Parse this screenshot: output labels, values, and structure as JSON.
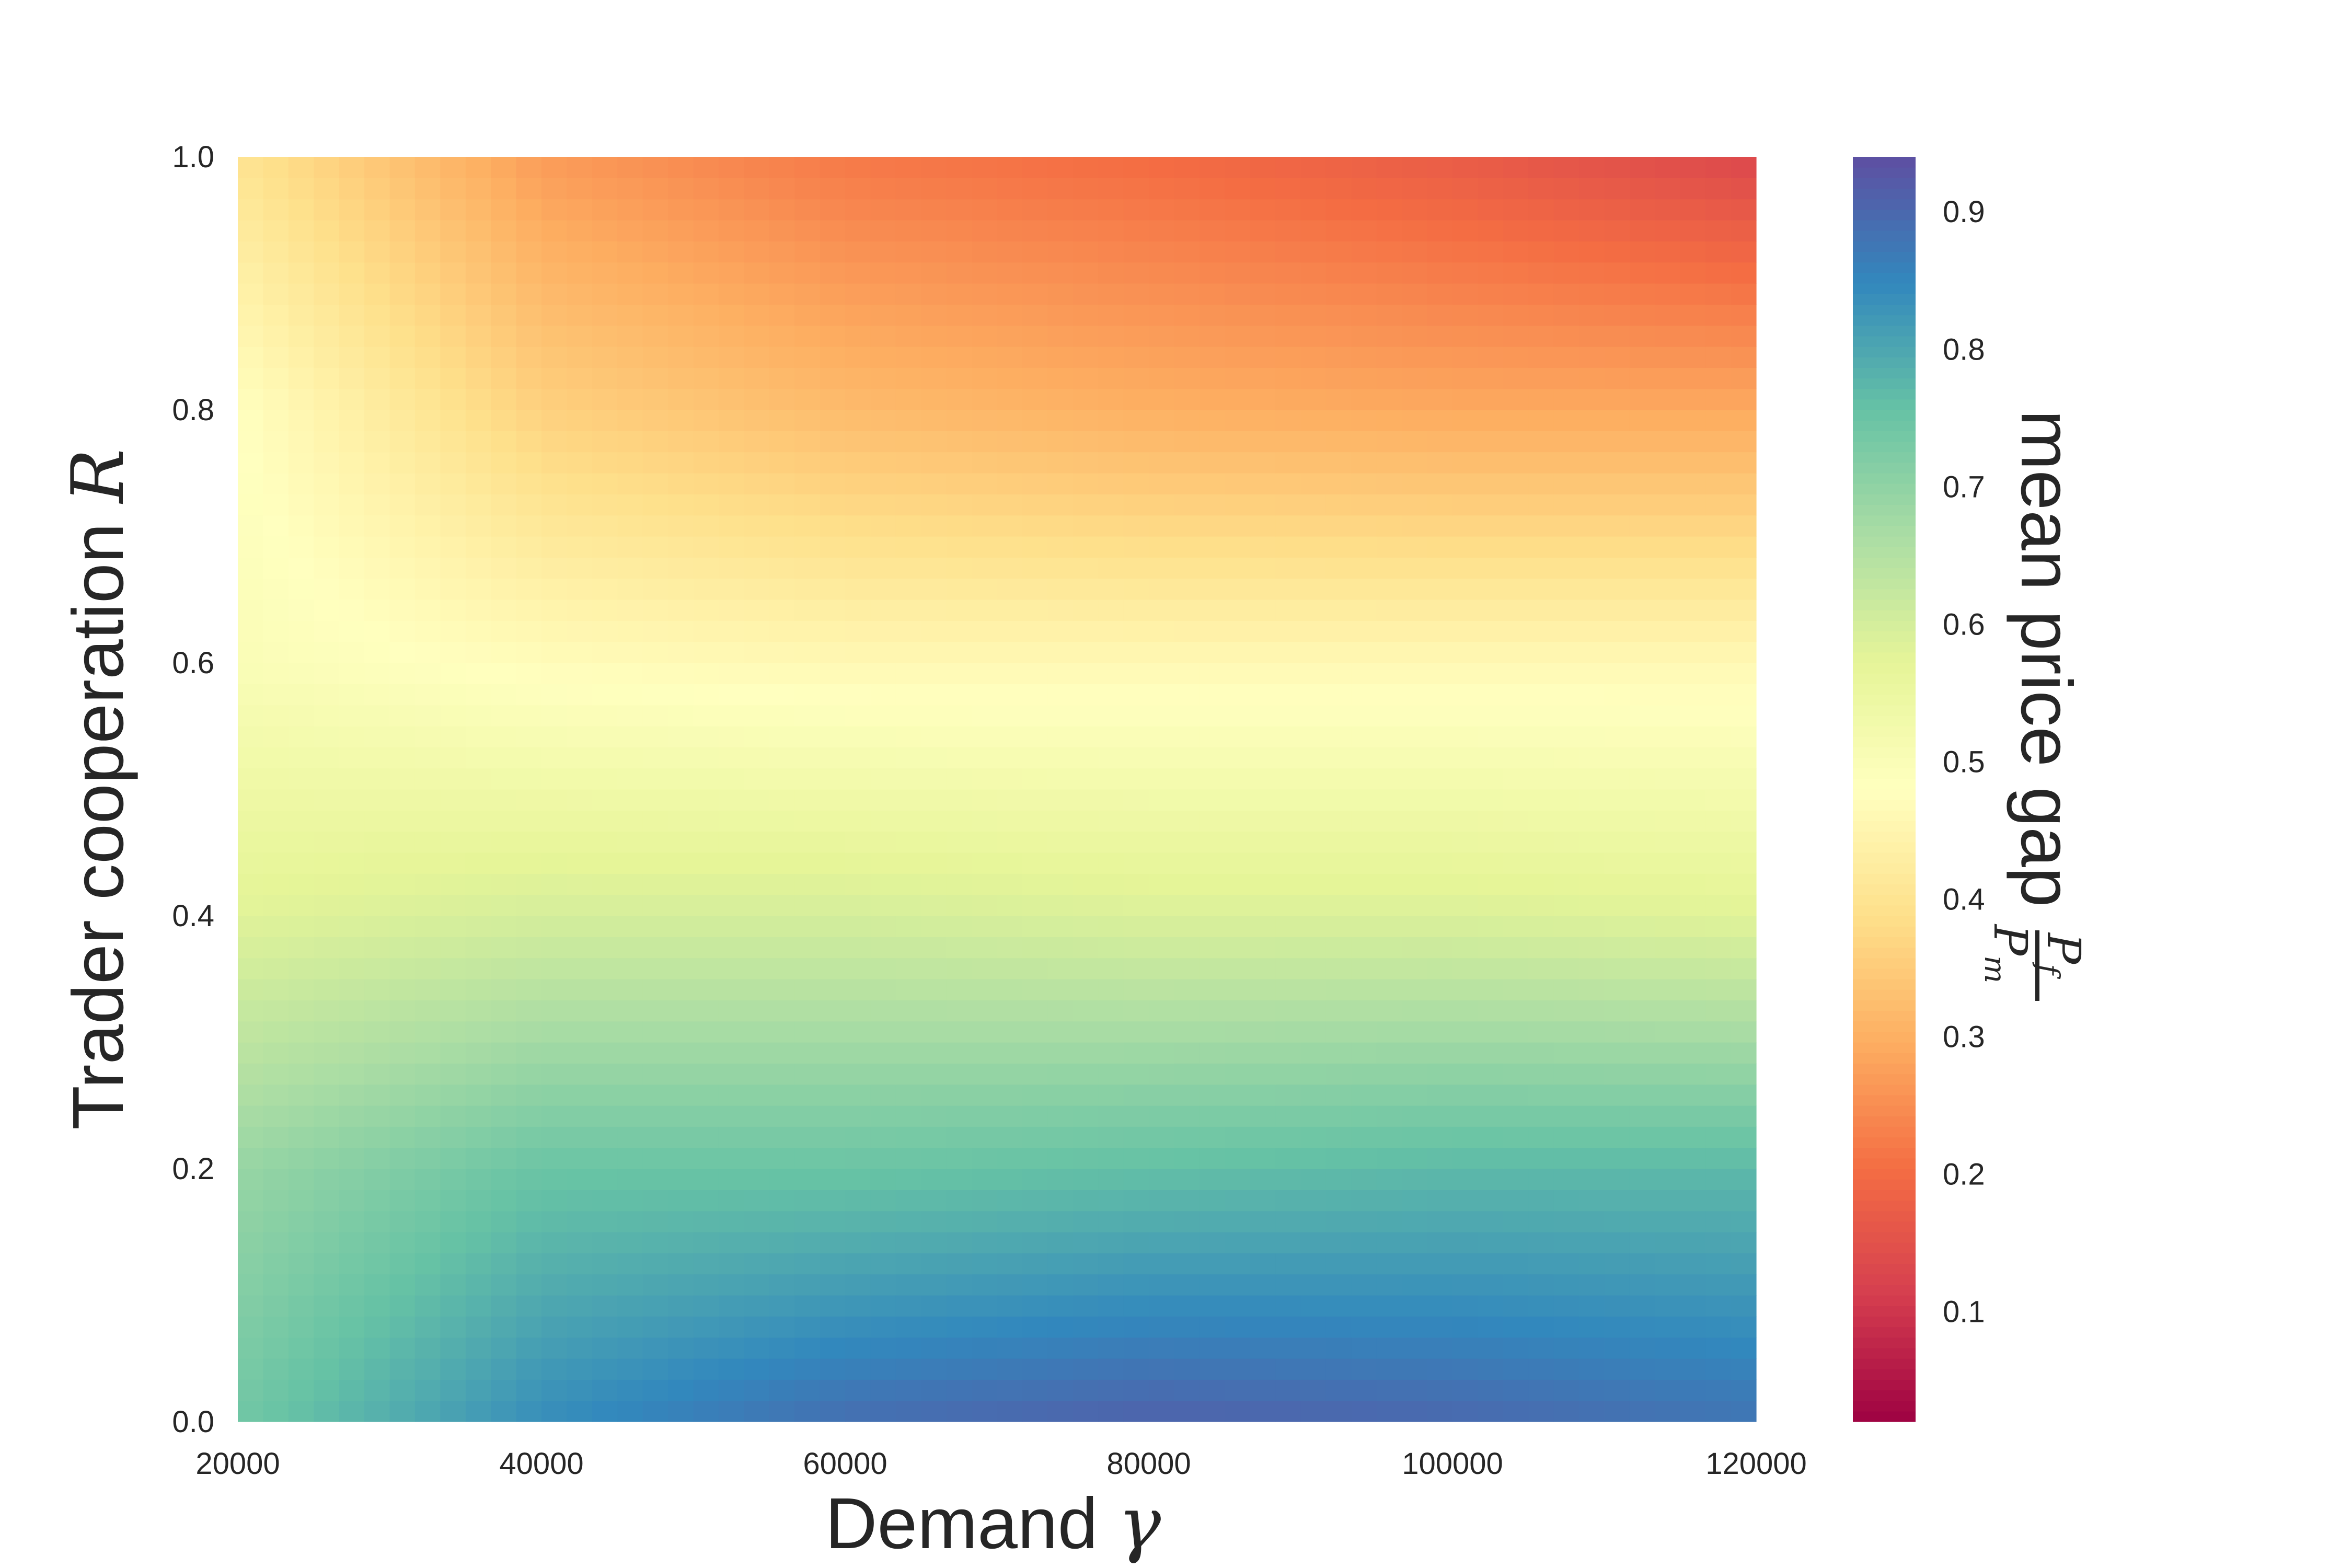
{
  "chart_data": {
    "type": "heatmap",
    "title": "",
    "xlabel": "Demand",
    "xlabel_symbol": "γ",
    "ylabel": "Trader cooperation",
    "ylabel_symbol": "R",
    "xlim": [
      20000,
      120000
    ],
    "ylim": [
      0.0,
      1.0
    ],
    "x_ticks": [
      "20000",
      "40000",
      "60000",
      "80000",
      "100000",
      "120000"
    ],
    "y_ticks": [
      "0.0",
      "0.2",
      "0.4",
      "0.6",
      "0.8",
      "1.0"
    ],
    "colormap": "Spectral",
    "colorbar": {
      "label": "mean price gap",
      "label_fraction_numerator": "P",
      "label_fraction_numerator_sub": "f",
      "label_fraction_denominator": "P",
      "label_fraction_denominator_sub": "m",
      "range": [
        0.02,
        0.94
      ],
      "ticks": [
        "0.1",
        "0.2",
        "0.3",
        "0.4",
        "0.5",
        "0.6",
        "0.7",
        "0.8",
        "0.9"
      ]
    },
    "x": [
      20000,
      40000,
      60000,
      80000,
      100000,
      120000
    ],
    "y": [
      0.0,
      0.2,
      0.4,
      0.6,
      0.8,
      1.0
    ],
    "z": [
      [
        0.74,
        0.84,
        0.89,
        0.91,
        0.9,
        0.88
      ],
      [
        0.69,
        0.75,
        0.75,
        0.76,
        0.77,
        0.77
      ],
      [
        0.58,
        0.6,
        0.6,
        0.59,
        0.59,
        0.58
      ],
      [
        0.5,
        0.47,
        0.46,
        0.46,
        0.46,
        0.46
      ],
      [
        0.48,
        0.36,
        0.32,
        0.3,
        0.29,
        0.29
      ],
      [
        0.4,
        0.27,
        0.22,
        0.2,
        0.17,
        0.13
      ]
    ]
  }
}
